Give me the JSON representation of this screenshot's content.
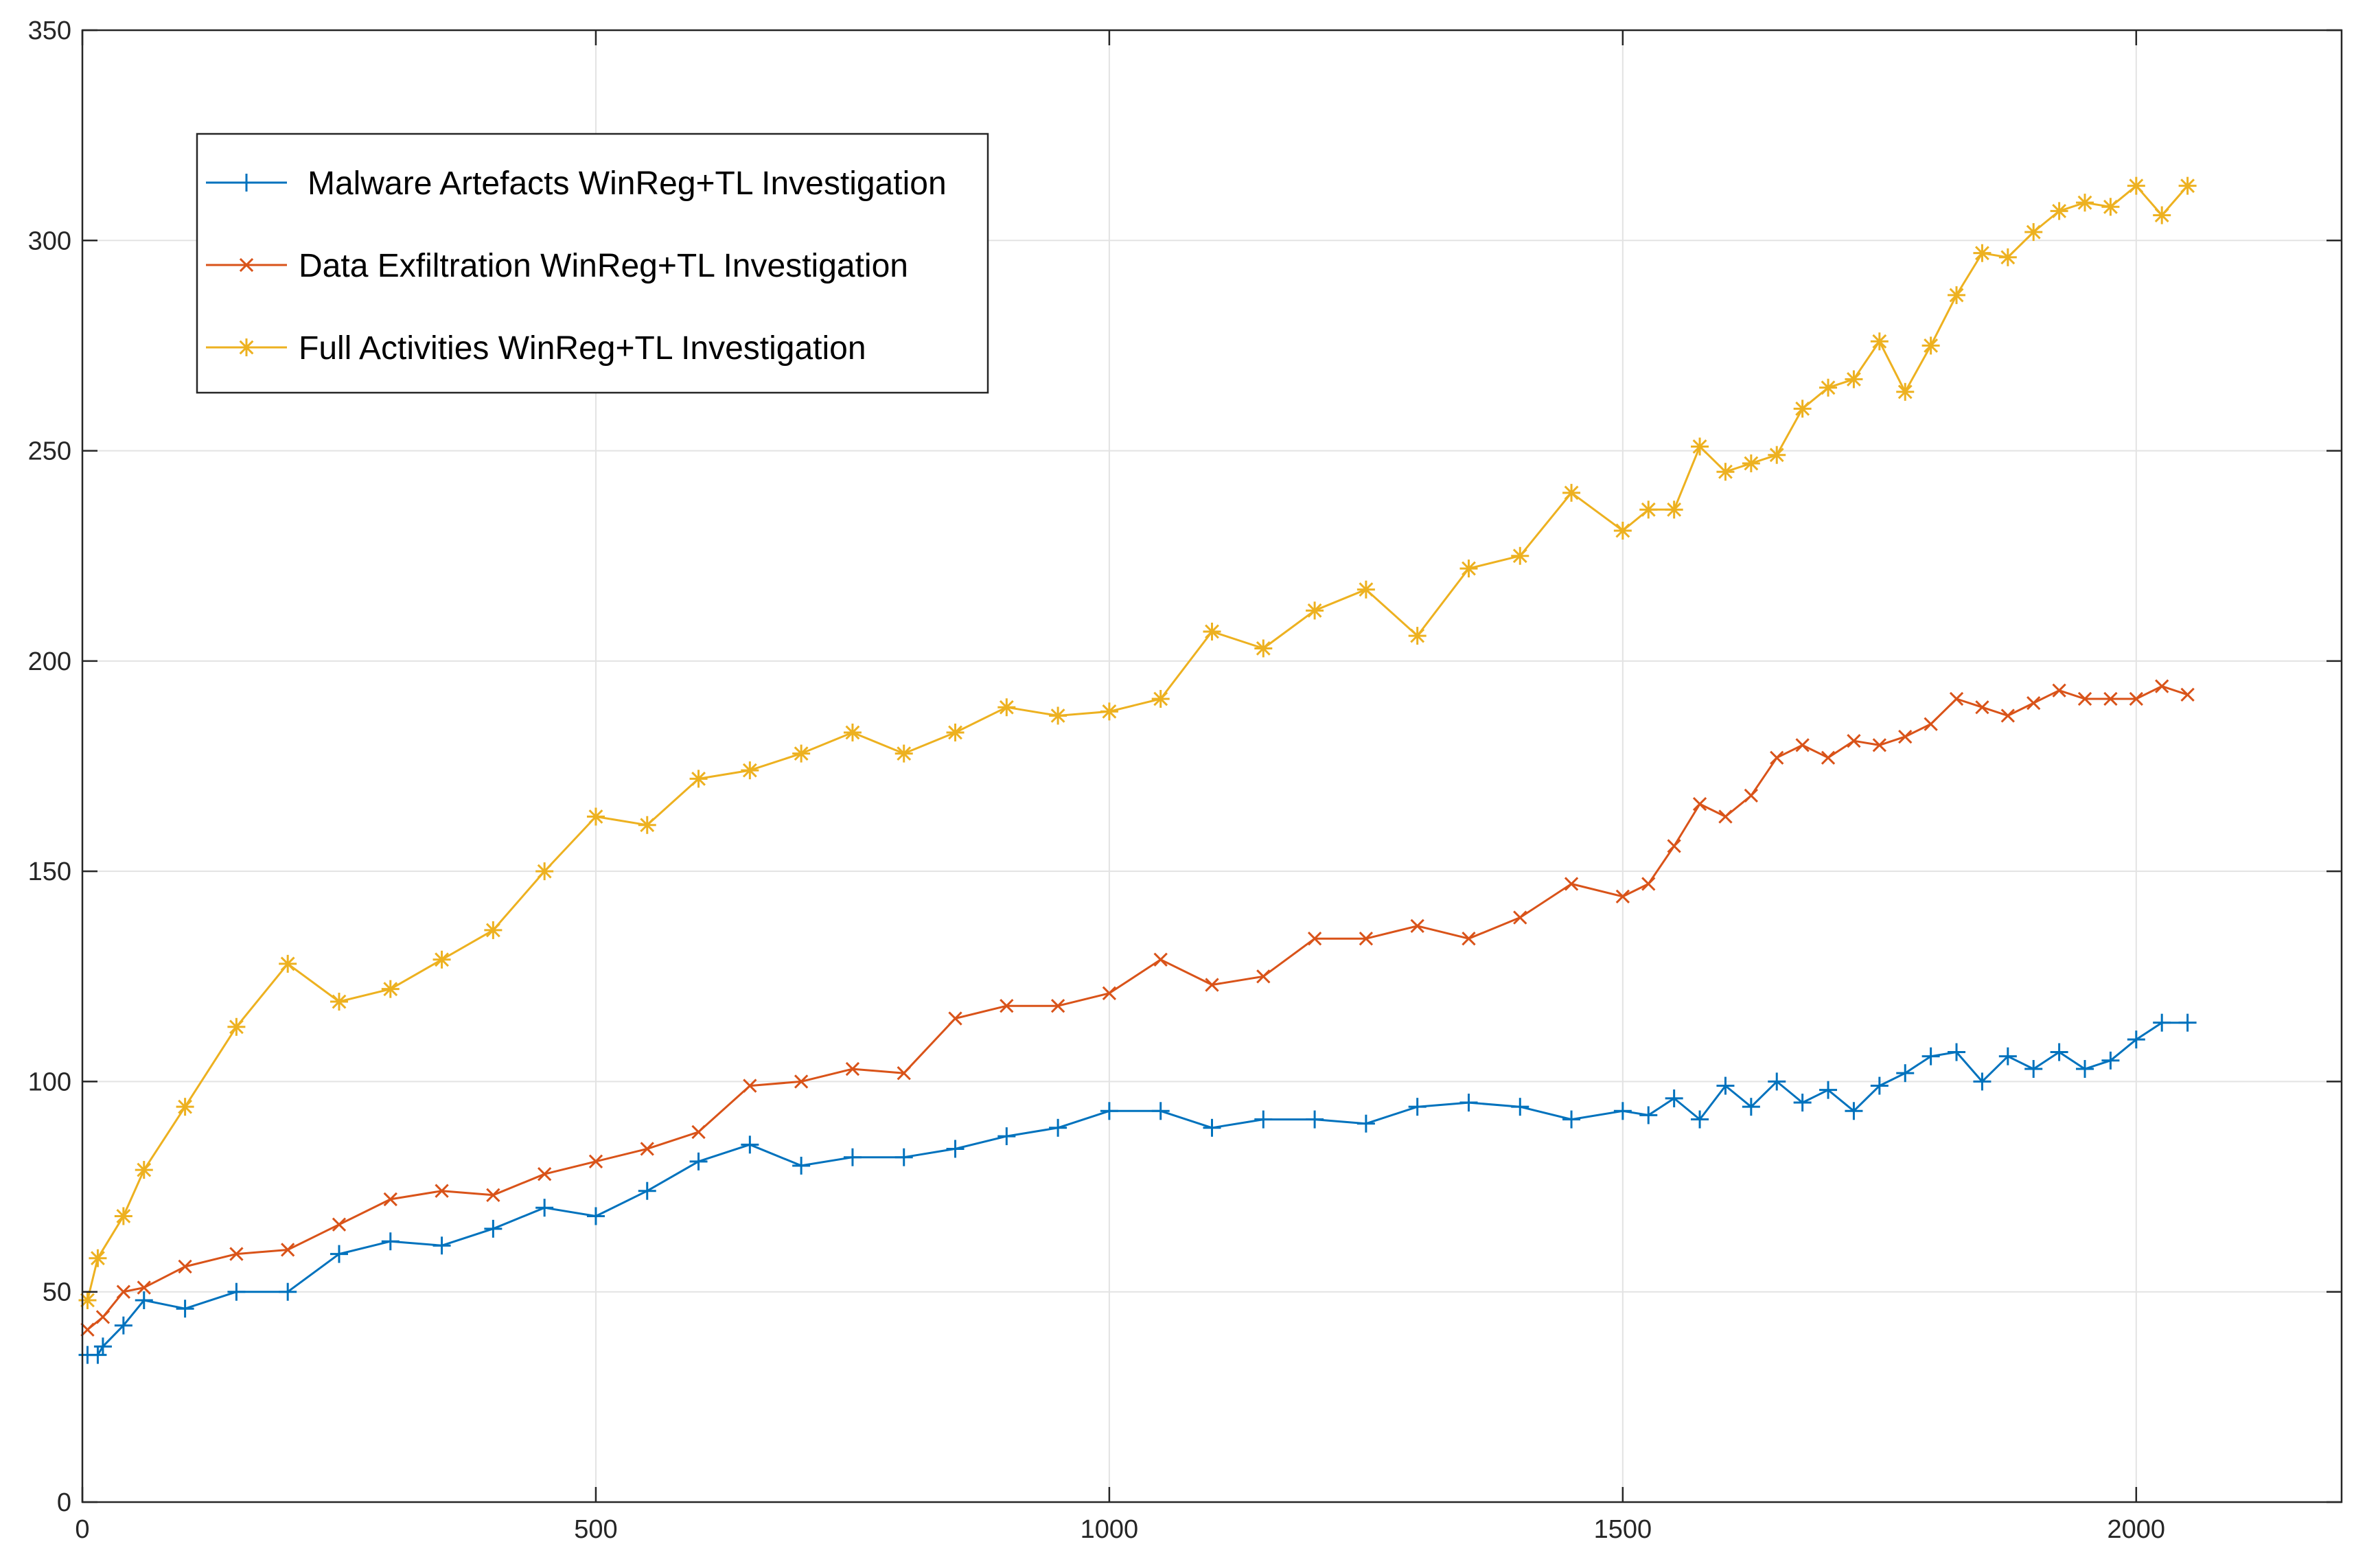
{
  "chart_data": {
    "type": "line",
    "title": "",
    "xlabel": "",
    "ylabel": "",
    "xlim": [
      0,
      2200
    ],
    "ylim": [
      0,
      350
    ],
    "xticks": [
      0,
      500,
      1000,
      1500,
      2000
    ],
    "yticks": [
      0,
      50,
      100,
      150,
      200,
      250,
      300,
      350
    ],
    "grid": true,
    "legend_position": "top-left",
    "series": [
      {
        "name": "Malware Artefacts WinReg+TL Investigation",
        "color": "#0072BD",
        "marker": "plus",
        "x": [
          5,
          15,
          20,
          40,
          60,
          100,
          150,
          200,
          250,
          300,
          350,
          400,
          450,
          500,
          550,
          600,
          650,
          700,
          750,
          800,
          850,
          900,
          950,
          1000,
          1050,
          1100,
          1150,
          1200,
          1250,
          1300,
          1350,
          1400,
          1450,
          1500,
          1525,
          1550,
          1575,
          1600,
          1625,
          1650,
          1675,
          1700,
          1725,
          1750,
          1775,
          1800,
          1825,
          1850,
          1875,
          1900,
          1925,
          1950,
          1975,
          2000,
          2025,
          2050
        ],
        "y": [
          35,
          35,
          37,
          42,
          48,
          46,
          50,
          50,
          59,
          62,
          61,
          65,
          70,
          68,
          74,
          81,
          85,
          80,
          82,
          82,
          84,
          87,
          89,
          93,
          93,
          89,
          91,
          91,
          90,
          94,
          95,
          94,
          91,
          93,
          92,
          96,
          91,
          99,
          94,
          100,
          95,
          98,
          93,
          99,
          102,
          106,
          107,
          100,
          106,
          103,
          107,
          103,
          105,
          110,
          114,
          114
        ]
      },
      {
        "name": "Data Exfiltration WinReg+TL Investigation",
        "color": "#D95319",
        "marker": "x",
        "x": [
          5,
          20,
          40,
          60,
          100,
          150,
          200,
          250,
          300,
          350,
          400,
          450,
          500,
          550,
          600,
          650,
          700,
          750,
          800,
          850,
          900,
          950,
          1000,
          1050,
          1100,
          1150,
          1200,
          1250,
          1300,
          1350,
          1400,
          1450,
          1500,
          1525,
          1550,
          1575,
          1600,
          1625,
          1650,
          1675,
          1700,
          1725,
          1750,
          1775,
          1800,
          1825,
          1850,
          1875,
          1900,
          1925,
          1950,
          1975,
          2000,
          2025,
          2050
        ],
        "y": [
          41,
          44,
          50,
          51,
          56,
          59,
          60,
          66,
          72,
          74,
          73,
          78,
          81,
          84,
          88,
          99,
          100,
          103,
          102,
          115,
          118,
          118,
          121,
          129,
          123,
          125,
          134,
          134,
          137,
          134,
          139,
          147,
          144,
          147,
          156,
          166,
          163,
          168,
          177,
          180,
          177,
          181,
          180,
          182,
          185,
          191,
          189,
          187,
          190,
          193,
          191,
          191,
          191,
          194,
          192
        ]
      },
      {
        "name": "Full Activities WinReg+TL Investigation",
        "color": "#EDB120",
        "marker": "star",
        "x": [
          5,
          15,
          40,
          60,
          100,
          150,
          200,
          250,
          300,
          350,
          400,
          450,
          500,
          550,
          600,
          650,
          700,
          750,
          800,
          850,
          900,
          950,
          1000,
          1050,
          1100,
          1150,
          1200,
          1250,
          1300,
          1350,
          1400,
          1450,
          1500,
          1525,
          1550,
          1575,
          1600,
          1625,
          1650,
          1675,
          1700,
          1725,
          1750,
          1775,
          1800,
          1825,
          1850,
          1875,
          1900,
          1925,
          1950,
          1975,
          2000,
          2025,
          2050
        ],
        "y": [
          48,
          58,
          68,
          79,
          94,
          113,
          128,
          119,
          122,
          129,
          136,
          150,
          163,
          161,
          172,
          174,
          178,
          183,
          178,
          183,
          189,
          187,
          188,
          191,
          207,
          203,
          212,
          217,
          206,
          222,
          225,
          240,
          231,
          236,
          236,
          251,
          245,
          247,
          249,
          260,
          265,
          267,
          276,
          264,
          275,
          287,
          297,
          296,
          302,
          307,
          309,
          308,
          313,
          306,
          313
        ]
      }
    ]
  }
}
